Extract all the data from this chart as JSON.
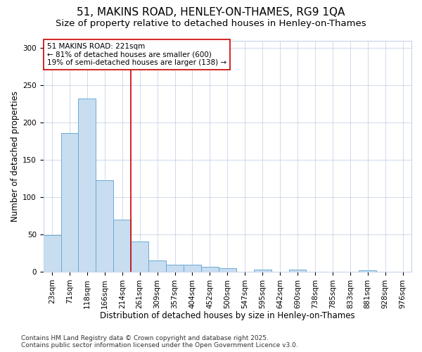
{
  "title": "51, MAKINS ROAD, HENLEY-ON-THAMES, RG9 1QA",
  "subtitle": "Size of property relative to detached houses in Henley-on-Thames",
  "xlabel": "Distribution of detached houses by size in Henley-on-Thames",
  "ylabel": "Number of detached properties",
  "categories": [
    "23sqm",
    "71sqm",
    "118sqm",
    "166sqm",
    "214sqm",
    "261sqm",
    "309sqm",
    "357sqm",
    "404sqm",
    "452sqm",
    "500sqm",
    "547sqm",
    "595sqm",
    "642sqm",
    "690sqm",
    "738sqm",
    "785sqm",
    "833sqm",
    "881sqm",
    "928sqm",
    "976sqm"
  ],
  "values": [
    49,
    186,
    232,
    123,
    70,
    41,
    15,
    9,
    9,
    7,
    5,
    0,
    3,
    0,
    3,
    0,
    0,
    0,
    2,
    0,
    0
  ],
  "bar_color": "#c8ddf0",
  "bar_edge_color": "#6aaad4",
  "property_label": "51 MAKINS ROAD: 221sqm",
  "annotation_line1": "← 81% of detached houses are smaller (600)",
  "annotation_line2": "19% of semi-detached houses are larger (138) →",
  "vline_color": "#cc0000",
  "vline_x_index": 4.5,
  "annotation_box_color": "#cc0000",
  "bg_color": "#ffffff",
  "plot_bg_color": "#ffffff",
  "grid_color": "#c8d4e8",
  "ylim": [
    0,
    310
  ],
  "yticks": [
    0,
    50,
    100,
    150,
    200,
    250,
    300
  ],
  "footer_line1": "Contains HM Land Registry data © Crown copyright and database right 2025.",
  "footer_line2": "Contains public sector information licensed under the Open Government Licence v3.0.",
  "title_fontsize": 11,
  "subtitle_fontsize": 9.5,
  "axis_label_fontsize": 8.5,
  "tick_fontsize": 7.5,
  "annotation_fontsize": 7.5,
  "footer_fontsize": 6.5
}
